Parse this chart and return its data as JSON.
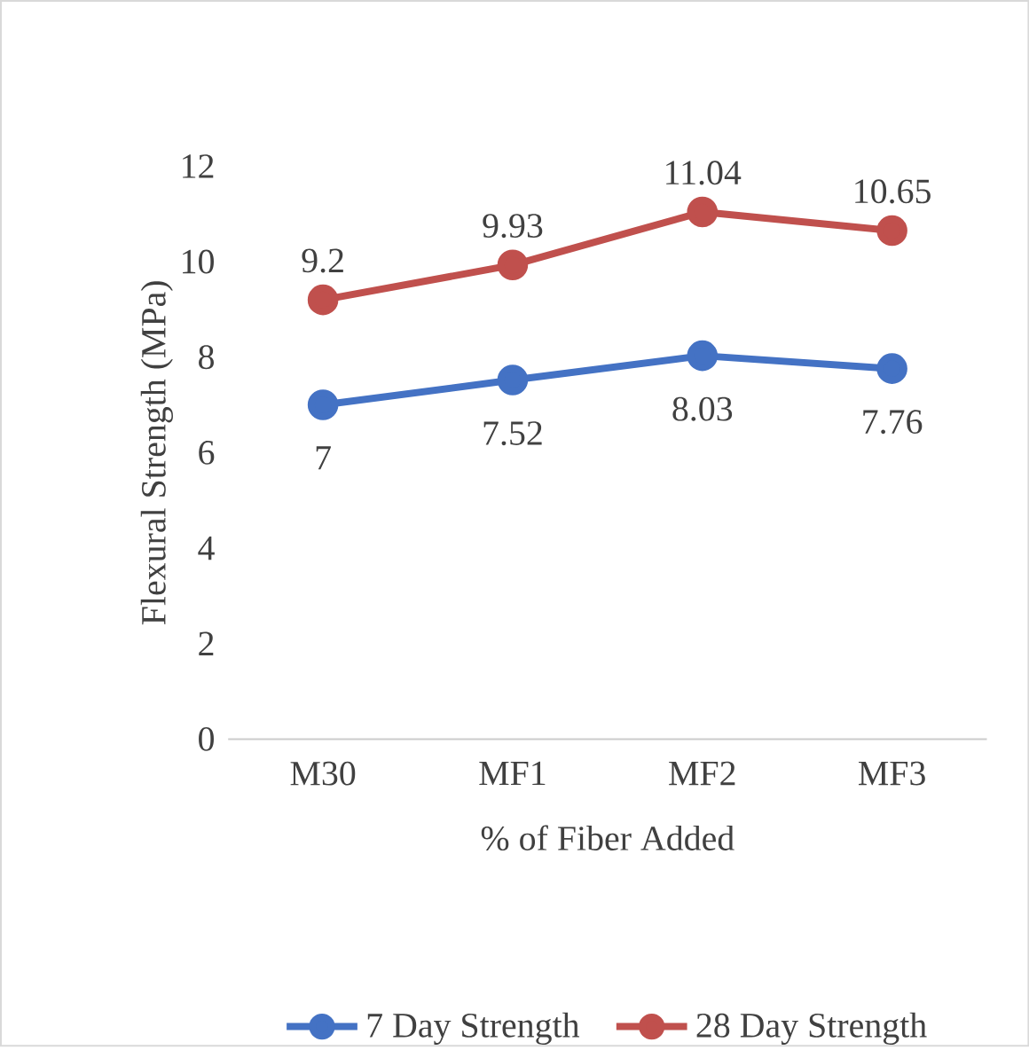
{
  "chart_data": {
    "type": "line",
    "xlabel": "% of Fiber Added",
    "ylabel": "Flexural Strength (MPa)",
    "categories": [
      "M30",
      "MF1",
      "MF2",
      "MF3"
    ],
    "series": [
      {
        "name": "7 Day Strength",
        "color": "#4472c4",
        "values": [
          7,
          7.52,
          8.03,
          7.76
        ]
      },
      {
        "name": "28 Day Strength",
        "color": "#c0504d",
        "values": [
          9.2,
          9.93,
          11.04,
          10.65
        ]
      }
    ],
    "ylim": [
      0,
      12
    ],
    "yticks": [
      0,
      2,
      4,
      6,
      8,
      10,
      12
    ],
    "grid": false,
    "legend": "bottom",
    "marker": "circle",
    "line_style": "solid",
    "data_labels": true
  }
}
